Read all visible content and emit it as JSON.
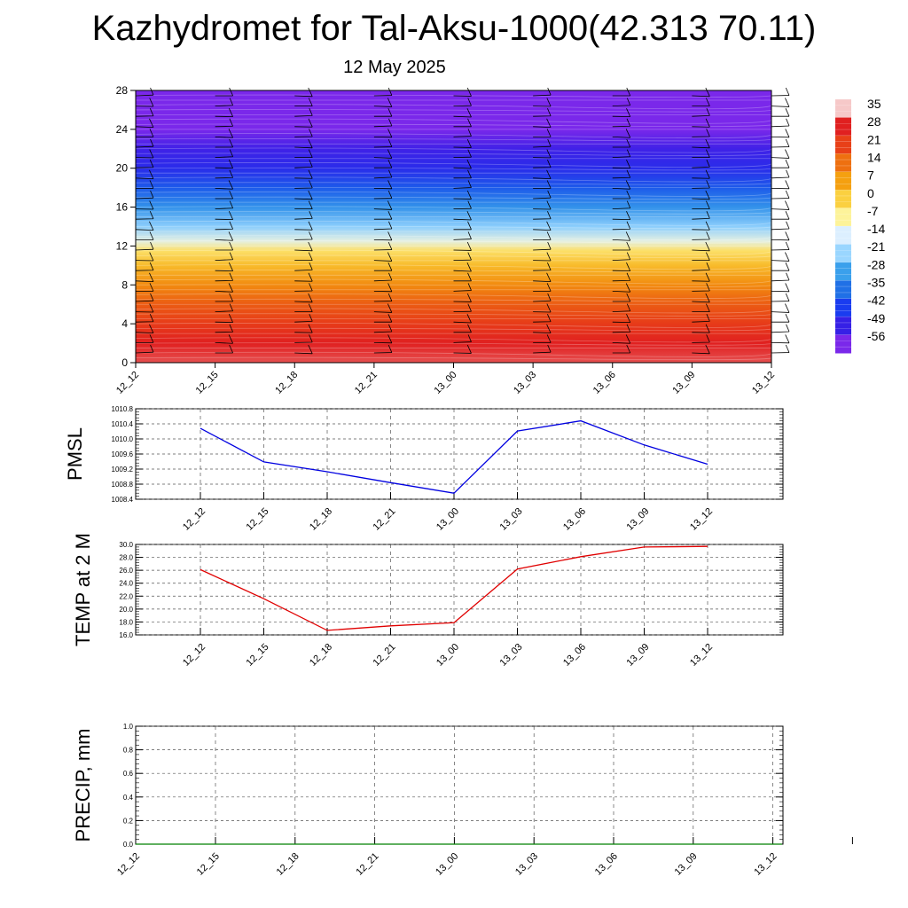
{
  "title": "Kazhydromet for Tal-Aksu-1000(42.313 70.11)",
  "subtitle": "12 May 2025",
  "chart_data": [
    {
      "type": "heatmap",
      "title": "",
      "xlabel": "",
      "ylabel": "",
      "x_categories": [
        "12_12",
        "12_15",
        "12_18",
        "12_21",
        "13_00",
        "13_03",
        "13_06",
        "13_09",
        "13_12"
      ],
      "y_ticks": [
        0,
        4,
        8,
        12,
        16,
        20,
        24,
        28
      ],
      "ylim": [
        0,
        28
      ],
      "colorbar_labels": [
        "35",
        "28",
        "21",
        "14",
        "7",
        "0",
        "-7",
        "-14",
        "-21",
        "-28",
        "-35",
        "-42",
        "-49",
        "-56"
      ],
      "colorbar_colors": [
        "#f6c8c8",
        "#e02020",
        "#e84018",
        "#ee7010",
        "#f5a010",
        "#fbd040",
        "#fdf39a",
        "#dcefff",
        "#9ad6ff",
        "#3aa0ec",
        "#2070e6",
        "#1a3cf0",
        "#3620e6",
        "#7a28ea"
      ],
      "temperature_profile": [
        {
          "level": 0,
          "value": 30
        },
        {
          "level": 2,
          "value": 28
        },
        {
          "level": 4,
          "value": 22
        },
        {
          "level": 6,
          "value": 17
        },
        {
          "level": 8,
          "value": 10
        },
        {
          "level": 10,
          "value": 3
        },
        {
          "level": 11.5,
          "value": -3
        },
        {
          "level": 12.5,
          "value": -12
        },
        {
          "level": 14,
          "value": -22
        },
        {
          "level": 16,
          "value": -30
        },
        {
          "level": 18,
          "value": -38
        },
        {
          "level": 20,
          "value": -46
        },
        {
          "level": 22,
          "value": -50
        },
        {
          "level": 24,
          "value": -56
        },
        {
          "level": 28,
          "value": -58
        }
      ],
      "overlay": "wind barbs"
    },
    {
      "type": "line",
      "ylabel": "PMSL",
      "x_categories": [
        "12_12",
        "12_15",
        "12_18",
        "12_21",
        "13_00",
        "13_03",
        "13_06",
        "13_09",
        "13_12"
      ],
      "y_ticks": [
        "1008.4",
        "1008.8",
        "1009.2",
        "1009.6",
        "1010.0",
        "1010.4",
        "1010.8"
      ],
      "ylim": [
        1008.4,
        1010.8
      ],
      "series": [
        {
          "color": "#0000e0",
          "values": [
            1010.28,
            1009.39,
            1009.13,
            1008.84,
            1008.56,
            1010.21,
            1010.48,
            1009.84,
            1009.33
          ]
        }
      ],
      "grid": true
    },
    {
      "type": "line",
      "ylabel": "TEMP at 2 M",
      "x_categories": [
        "12_12",
        "12_15",
        "12_18",
        "12_21",
        "13_00",
        "13_03",
        "13_06",
        "13_09",
        "13_12"
      ],
      "y_ticks": [
        "16.0",
        "18.0",
        "20.0",
        "22.0",
        "24.0",
        "26.0",
        "28.0",
        "30.0"
      ],
      "ylim": [
        16,
        30
      ],
      "series": [
        {
          "color": "#e00000",
          "values": [
            26.1,
            21.6,
            16.7,
            17.4,
            17.9,
            26.2,
            28.1,
            29.6,
            29.7
          ]
        }
      ],
      "grid": true
    },
    {
      "type": "line",
      "ylabel": "PRECIP, mm",
      "x_categories": [
        "12_12",
        "12_15",
        "12_18",
        "12_21",
        "13_00",
        "13_03",
        "13_06",
        "13_09",
        "13_12"
      ],
      "y_ticks": [
        "0.0",
        "0.2",
        "0.4",
        "0.6",
        "0.8",
        "1.0"
      ],
      "ylim": [
        0,
        1
      ],
      "series": [
        {
          "color": "#008000",
          "values": [
            0,
            0,
            0,
            0,
            0,
            0,
            0,
            0,
            0
          ]
        }
      ],
      "grid": true
    }
  ]
}
